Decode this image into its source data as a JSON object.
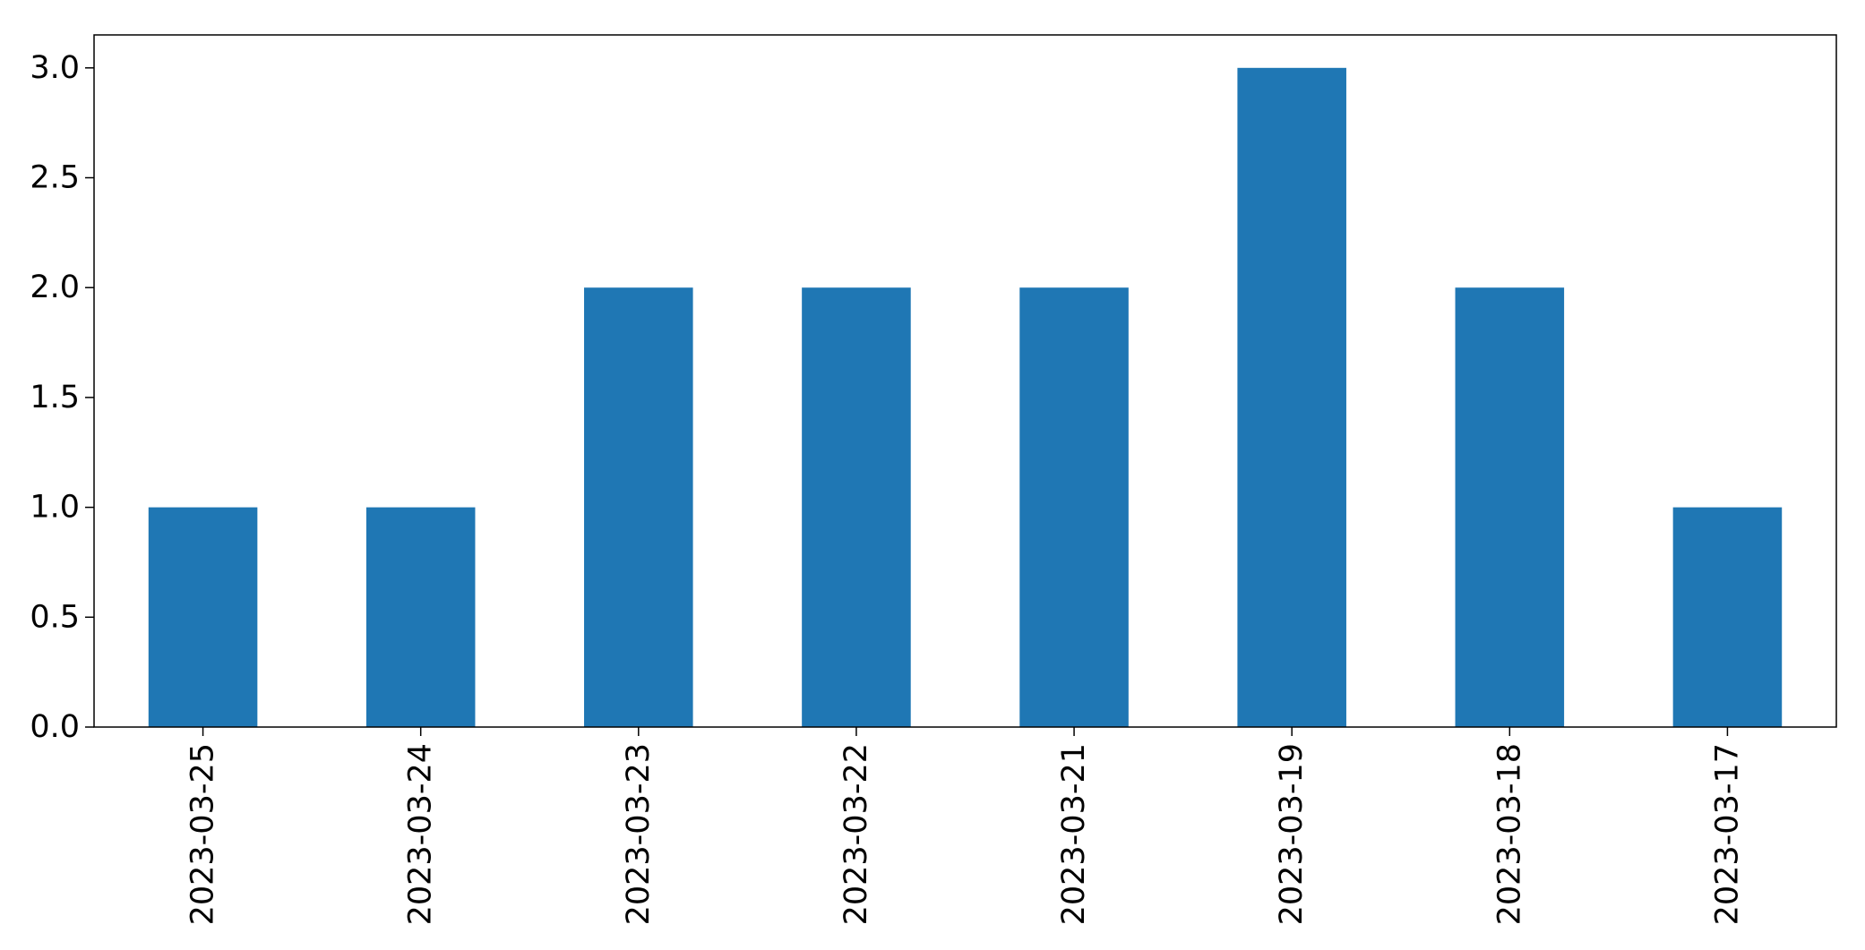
{
  "chart_data": {
    "type": "bar",
    "categories": [
      "2023-03-25",
      "2023-03-24",
      "2023-03-23",
      "2023-03-22",
      "2023-03-21",
      "2023-03-19",
      "2023-03-18",
      "2023-03-17"
    ],
    "values": [
      1,
      1,
      2,
      2,
      2,
      3,
      2,
      1
    ],
    "y_ticks": [
      "0.0",
      "0.5",
      "1.0",
      "1.5",
      "2.0",
      "2.5",
      "3.0"
    ],
    "ylim": [
      0,
      3.15
    ],
    "xlabel": "",
    "ylabel": "",
    "title": "",
    "grid": false,
    "legend": "none",
    "bar_color": "#1f77b4"
  }
}
